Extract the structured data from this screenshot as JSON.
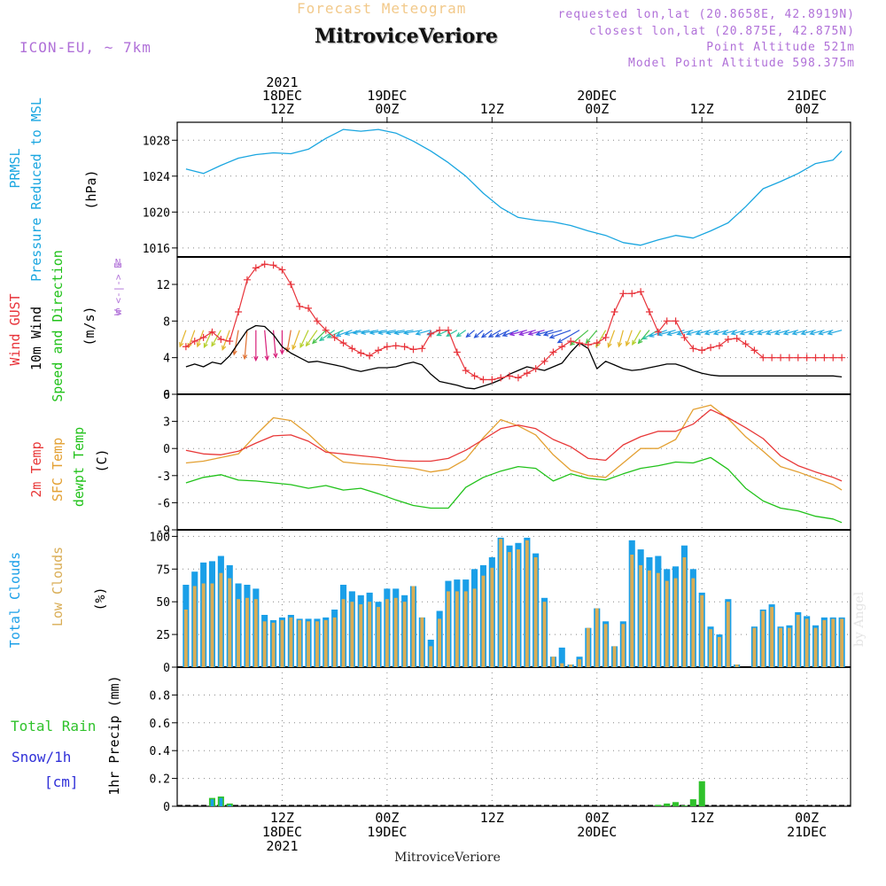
{
  "header": {
    "title": "Forecast Meteogram",
    "station": "MitroviceVeriore",
    "model": "ICON-EU, ~ 7km",
    "requested": "requested lon,lat (20.8658E, 42.8919N)",
    "closest": "closest lon,lat (20.875E, 42.875N)",
    "point_altitude": "Point Altitude 521m",
    "model_altitude": "Model Point Altitude 598.375m",
    "credit": "by Angel"
  },
  "colors": {
    "pressure": "#1aa6e0",
    "gust": "#e8333a",
    "wind": "#000000",
    "t2m": "#e83838",
    "sfc": "#e3a032",
    "dewpt": "#21c21a",
    "total_clouds": "#1a9fe8",
    "low_clouds": "#d9ad55",
    "rain": "#2fc22b",
    "snow": "#3030d8",
    "grid": "#888888",
    "axis_label_purple": "#b070d8"
  },
  "time_axis": {
    "top_labels": [
      {
        "t": 12,
        "lines": [
          "2021",
          "18DEC",
          "12Z"
        ]
      },
      {
        "t": 24,
        "lines": [
          "19DEC",
          "00Z"
        ]
      },
      {
        "t": 36,
        "lines": [
          "12Z"
        ]
      },
      {
        "t": 48,
        "lines": [
          "20DEC",
          "00Z"
        ]
      },
      {
        "t": 60,
        "lines": [
          "12Z"
        ]
      },
      {
        "t": 72,
        "lines": [
          "21DEC",
          "00Z"
        ]
      }
    ],
    "bottom_labels": [
      {
        "t": 12,
        "lines": [
          "12Z",
          "18DEC",
          "2021"
        ]
      },
      {
        "t": 24,
        "lines": [
          "00Z",
          "19DEC"
        ]
      },
      {
        "t": 36,
        "lines": [
          "12Z"
        ]
      },
      {
        "t": 48,
        "lines": [
          "00Z",
          "20DEC"
        ]
      },
      {
        "t": 60,
        "lines": [
          "12Z"
        ]
      },
      {
        "t": 72,
        "lines": [
          "00Z",
          "21DEC"
        ]
      }
    ],
    "footer": "MitroviceVeriore"
  },
  "chart_data": [
    {
      "type": "line",
      "name": "pressure",
      "ylabel": [
        "PRMSL",
        "Pressure Reduced to MSL"
      ],
      "unit": "(hPa)",
      "ylim": [
        1015,
        1030
      ],
      "yticks": [
        1016,
        1020,
        1024,
        1028
      ],
      "x": [
        1,
        3,
        5,
        7,
        9,
        11,
        13,
        15,
        17,
        19,
        21,
        23,
        25,
        27,
        29,
        31,
        33,
        35,
        37,
        39,
        41,
        43,
        45,
        47,
        49,
        51,
        53,
        55,
        57,
        59,
        61,
        63,
        65,
        67,
        69,
        71,
        73,
        75,
        76
      ],
      "series": [
        {
          "name": "PRMSL",
          "values": [
            1024.8,
            1024.3,
            1025.2,
            1026.0,
            1026.4,
            1026.6,
            1026.5,
            1027.0,
            1028.2,
            1029.2,
            1029.0,
            1029.2,
            1028.8,
            1027.9,
            1026.8,
            1025.5,
            1024.0,
            1022.1,
            1020.5,
            1019.4,
            1019.1,
            1018.9,
            1018.5,
            1017.9,
            1017.4,
            1016.6,
            1016.3,
            1016.9,
            1017.4,
            1017.1,
            1017.9,
            1018.8,
            1020.6,
            1022.6,
            1023.4,
            1024.3,
            1025.4,
            1025.8,
            1026.8
          ]
        }
      ]
    },
    {
      "type": "line",
      "name": "wind",
      "ylabel": [
        "Wind GUST",
        "10m Wind",
        "Speed and Direction"
      ],
      "unit": "(m/s)",
      "ylim": [
        0,
        15
      ],
      "yticks": [
        0,
        4,
        8,
        12
      ],
      "direction_legend": [
        "N",
        "W <-|-> E",
        "S"
      ],
      "x": [
        1,
        2,
        3,
        4,
        5,
        6,
        7,
        8,
        9,
        10,
        11,
        12,
        13,
        14,
        15,
        16,
        17,
        18,
        19,
        20,
        21,
        22,
        23,
        24,
        25,
        26,
        27,
        28,
        29,
        30,
        31,
        32,
        33,
        34,
        35,
        36,
        37,
        38,
        39,
        40,
        41,
        42,
        43,
        44,
        45,
        46,
        47,
        48,
        49,
        50,
        51,
        52,
        53,
        54,
        55,
        56,
        57,
        58,
        59,
        60,
        61,
        62,
        63,
        64,
        65,
        66,
        67,
        68,
        69,
        70,
        71,
        72,
        73,
        74,
        75,
        76
      ],
      "series": [
        {
          "name": "Wind GUST",
          "values": [
            5.2,
            5.8,
            6.2,
            6.8,
            6.0,
            5.8,
            9.0,
            12.5,
            13.8,
            14.2,
            14.1,
            13.6,
            12.0,
            9.6,
            9.4,
            8.0,
            7.0,
            6.2,
            5.6,
            5.0,
            4.5,
            4.2,
            4.8,
            5.2,
            5.3,
            5.2,
            4.9,
            5.0,
            6.6,
            7.0,
            7.0,
            4.6,
            2.6,
            2.0,
            1.6,
            1.6,
            1.8,
            2.0,
            1.8,
            2.3,
            2.8,
            3.6,
            4.6,
            5.2,
            5.8,
            5.6,
            5.4,
            5.6,
            6.2,
            9.0,
            11.0,
            11.0,
            11.2,
            9.0,
            6.8,
            8.0,
            8.0,
            6.2,
            5.0,
            4.8,
            5.1,
            5.3,
            6.0,
            6.1,
            5.5,
            4.8,
            4.0,
            4.0,
            4.0,
            4.0,
            4.0,
            4.0,
            4.0,
            4.0,
            4.0,
            4.0
          ]
        },
        {
          "name": "10m Wind",
          "values": [
            3.0,
            3.3,
            3.0,
            3.5,
            3.3,
            4.2,
            5.6,
            7.0,
            7.5,
            7.4,
            6.5,
            5.2,
            4.5,
            4.0,
            3.5,
            3.6,
            3.4,
            3.2,
            3.0,
            2.7,
            2.5,
            2.7,
            2.9,
            2.9,
            3.0,
            3.3,
            3.5,
            3.2,
            2.2,
            1.4,
            1.2,
            1.0,
            0.7,
            0.6,
            0.9,
            1.2,
            1.6,
            2.2,
            2.6,
            3.0,
            2.8,
            2.6,
            3.0,
            3.4,
            4.6,
            5.6,
            5.0,
            2.8,
            3.6,
            3.2,
            2.8,
            2.6,
            2.7,
            2.9,
            3.1,
            3.3,
            3.3,
            3.0,
            2.6,
            2.3,
            2.1,
            2.0,
            2.0,
            2.0,
            2.0,
            2.0,
            2.0,
            2.0,
            2.0,
            2.0,
            2.0,
            2.0,
            2.0,
            2.0,
            2.0,
            1.9
          ]
        }
      ],
      "arrows_deg_to": [
        200,
        200,
        200,
        205,
        210,
        200,
        190,
        185,
        180,
        175,
        175,
        180,
        190,
        200,
        205,
        215,
        225,
        235,
        245,
        250,
        255,
        260,
        260,
        260,
        260,
        260,
        260,
        260,
        255,
        250,
        245,
        240,
        235,
        230,
        230,
        235,
        240,
        245,
        250,
        255,
        255,
        255,
        255,
        255,
        250,
        240,
        230,
        220,
        210,
        200,
        195,
        200,
        210,
        220,
        240,
        250,
        255,
        255,
        255,
        255,
        255,
        255,
        255,
        255,
        255,
        255,
        255,
        255,
        255,
        255,
        255,
        255,
        255,
        255,
        255,
        255
      ]
    },
    {
      "type": "line",
      "name": "temperature",
      "ylabel": [
        "2m Temp",
        "SFC Temp",
        "dewpt Temp"
      ],
      "unit": "(C)",
      "ylim": [
        -9,
        6
      ],
      "yticks": [
        -9,
        -6,
        -3,
        0,
        3,
        6
      ],
      "x": [
        1,
        3,
        5,
        7,
        9,
        11,
        13,
        15,
        17,
        19,
        21,
        23,
        25,
        27,
        29,
        31,
        33,
        35,
        37,
        39,
        41,
        43,
        45,
        47,
        49,
        51,
        53,
        55,
        57,
        59,
        61,
        63,
        65,
        67,
        69,
        71,
        73,
        75,
        76
      ],
      "series": [
        {
          "name": "2m Temp",
          "values": [
            -0.2,
            -0.6,
            -0.7,
            -0.3,
            0.6,
            1.4,
            1.5,
            0.8,
            -0.4,
            -0.6,
            -0.8,
            -1.0,
            -1.3,
            -1.4,
            -1.4,
            -1.1,
            -0.2,
            1.0,
            2.2,
            2.6,
            2.2,
            1.0,
            0.2,
            -1.1,
            -1.3,
            0.4,
            1.3,
            1.9,
            1.9,
            2.7,
            4.3,
            3.4,
            2.3,
            1.1,
            -0.8,
            -1.9,
            -2.6,
            -3.2,
            -3.6
          ]
        },
        {
          "name": "SFC Temp",
          "values": [
            -1.6,
            -1.4,
            -1.0,
            -0.6,
            1.5,
            3.4,
            3.1,
            1.6,
            -0.2,
            -1.5,
            -1.7,
            -1.8,
            -2.0,
            -2.2,
            -2.6,
            -2.3,
            -1.2,
            1.2,
            3.2,
            2.5,
            1.5,
            -0.7,
            -2.4,
            -3.0,
            -3.2,
            -1.6,
            0.0,
            0.0,
            1.0,
            4.3,
            4.8,
            3.3,
            1.3,
            -0.3,
            -2.0,
            -2.6,
            -3.3,
            -4.0,
            -4.6
          ]
        },
        {
          "name": "dewpt Temp",
          "values": [
            -3.8,
            -3.2,
            -2.9,
            -3.5,
            -3.6,
            -3.8,
            -4.0,
            -4.4,
            -4.1,
            -4.6,
            -4.4,
            -5.0,
            -5.7,
            -6.3,
            -6.6,
            -6.6,
            -4.3,
            -3.2,
            -2.5,
            -2.0,
            -2.2,
            -3.6,
            -2.8,
            -3.3,
            -3.5,
            -2.8,
            -2.2,
            -1.9,
            -1.5,
            -1.6,
            -1.0,
            -2.3,
            -4.4,
            -5.8,
            -6.6,
            -6.9,
            -7.5,
            -7.8,
            -8.2
          ]
        }
      ]
    },
    {
      "type": "bar",
      "name": "clouds",
      "ylabel": [
        "Total Clouds",
        "Low Clouds"
      ],
      "unit": "(%)",
      "ylim": [
        0,
        105
      ],
      "yticks": [
        0,
        25,
        50,
        75,
        100
      ],
      "x": [
        1,
        2,
        3,
        4,
        5,
        6,
        7,
        8,
        9,
        10,
        11,
        12,
        13,
        14,
        15,
        16,
        17,
        18,
        19,
        20,
        21,
        22,
        23,
        24,
        25,
        26,
        27,
        28,
        29,
        30,
        31,
        32,
        33,
        34,
        35,
        36,
        37,
        38,
        39,
        40,
        41,
        42,
        43,
        44,
        45,
        46,
        47,
        48,
        49,
        50,
        51,
        52,
        53,
        54,
        55,
        56,
        57,
        58,
        59,
        60,
        61,
        62,
        63,
        64,
        65,
        66,
        67,
        68,
        69,
        70,
        71,
        72,
        73,
        74,
        75,
        76
      ],
      "series": [
        {
          "name": "Total Clouds",
          "values": [
            63,
            73,
            80,
            81,
            85,
            78,
            64,
            63,
            60,
            40,
            36,
            38,
            40,
            37,
            37,
            37,
            38,
            44,
            63,
            58,
            55,
            57,
            50,
            60,
            60,
            55,
            62,
            38,
            21,
            43,
            66,
            67,
            67,
            75,
            78,
            84,
            99,
            93,
            95,
            99,
            87,
            53,
            8,
            15,
            2,
            8,
            30,
            45,
            35,
            16,
            35,
            97,
            90,
            84,
            85,
            75,
            77,
            93,
            75,
            57,
            31,
            25,
            52,
            2,
            0,
            31,
            44,
            48,
            31,
            32,
            42,
            39,
            32,
            38,
            38,
            38
          ]
        },
        {
          "name": "Low Clouds",
          "values": [
            44,
            62,
            64,
            64,
            72,
            68,
            52,
            53,
            52,
            35,
            34,
            36,
            38,
            36,
            35,
            35,
            36,
            38,
            52,
            50,
            48,
            50,
            46,
            52,
            53,
            50,
            62,
            38,
            16,
            37,
            58,
            58,
            58,
            60,
            70,
            76,
            98,
            88,
            90,
            97,
            84,
            50,
            8,
            3,
            2,
            6,
            30,
            45,
            33,
            16,
            33,
            86,
            78,
            74,
            72,
            66,
            68,
            84,
            68,
            55,
            29,
            23,
            50,
            2,
            0,
            30,
            43,
            46,
            30,
            30,
            40,
            37,
            30,
            36,
            37,
            37
          ]
        }
      ]
    },
    {
      "type": "bar",
      "name": "precip",
      "ylabel": [
        "1hr Precip (mm)"
      ],
      "legend": [
        "Total Rain",
        "Snow/1h",
        "[cm]"
      ],
      "ylim": [
        0,
        1.0
      ],
      "yticks": [
        0,
        0.2,
        0.4,
        0.6,
        0.8
      ],
      "series": [
        {
          "name": "Total Rain",
          "x": [
            4,
            5,
            6,
            55,
            56,
            57,
            58,
            59,
            60
          ],
          "values": [
            0.06,
            0.07,
            0.02,
            0.01,
            0.02,
            0.03,
            0.005,
            0.05,
            0.18
          ]
        },
        {
          "name": "Snow/1h",
          "x": [
            4,
            5,
            6
          ],
          "values": [
            0.05,
            0.06,
            0.01
          ]
        }
      ]
    }
  ]
}
